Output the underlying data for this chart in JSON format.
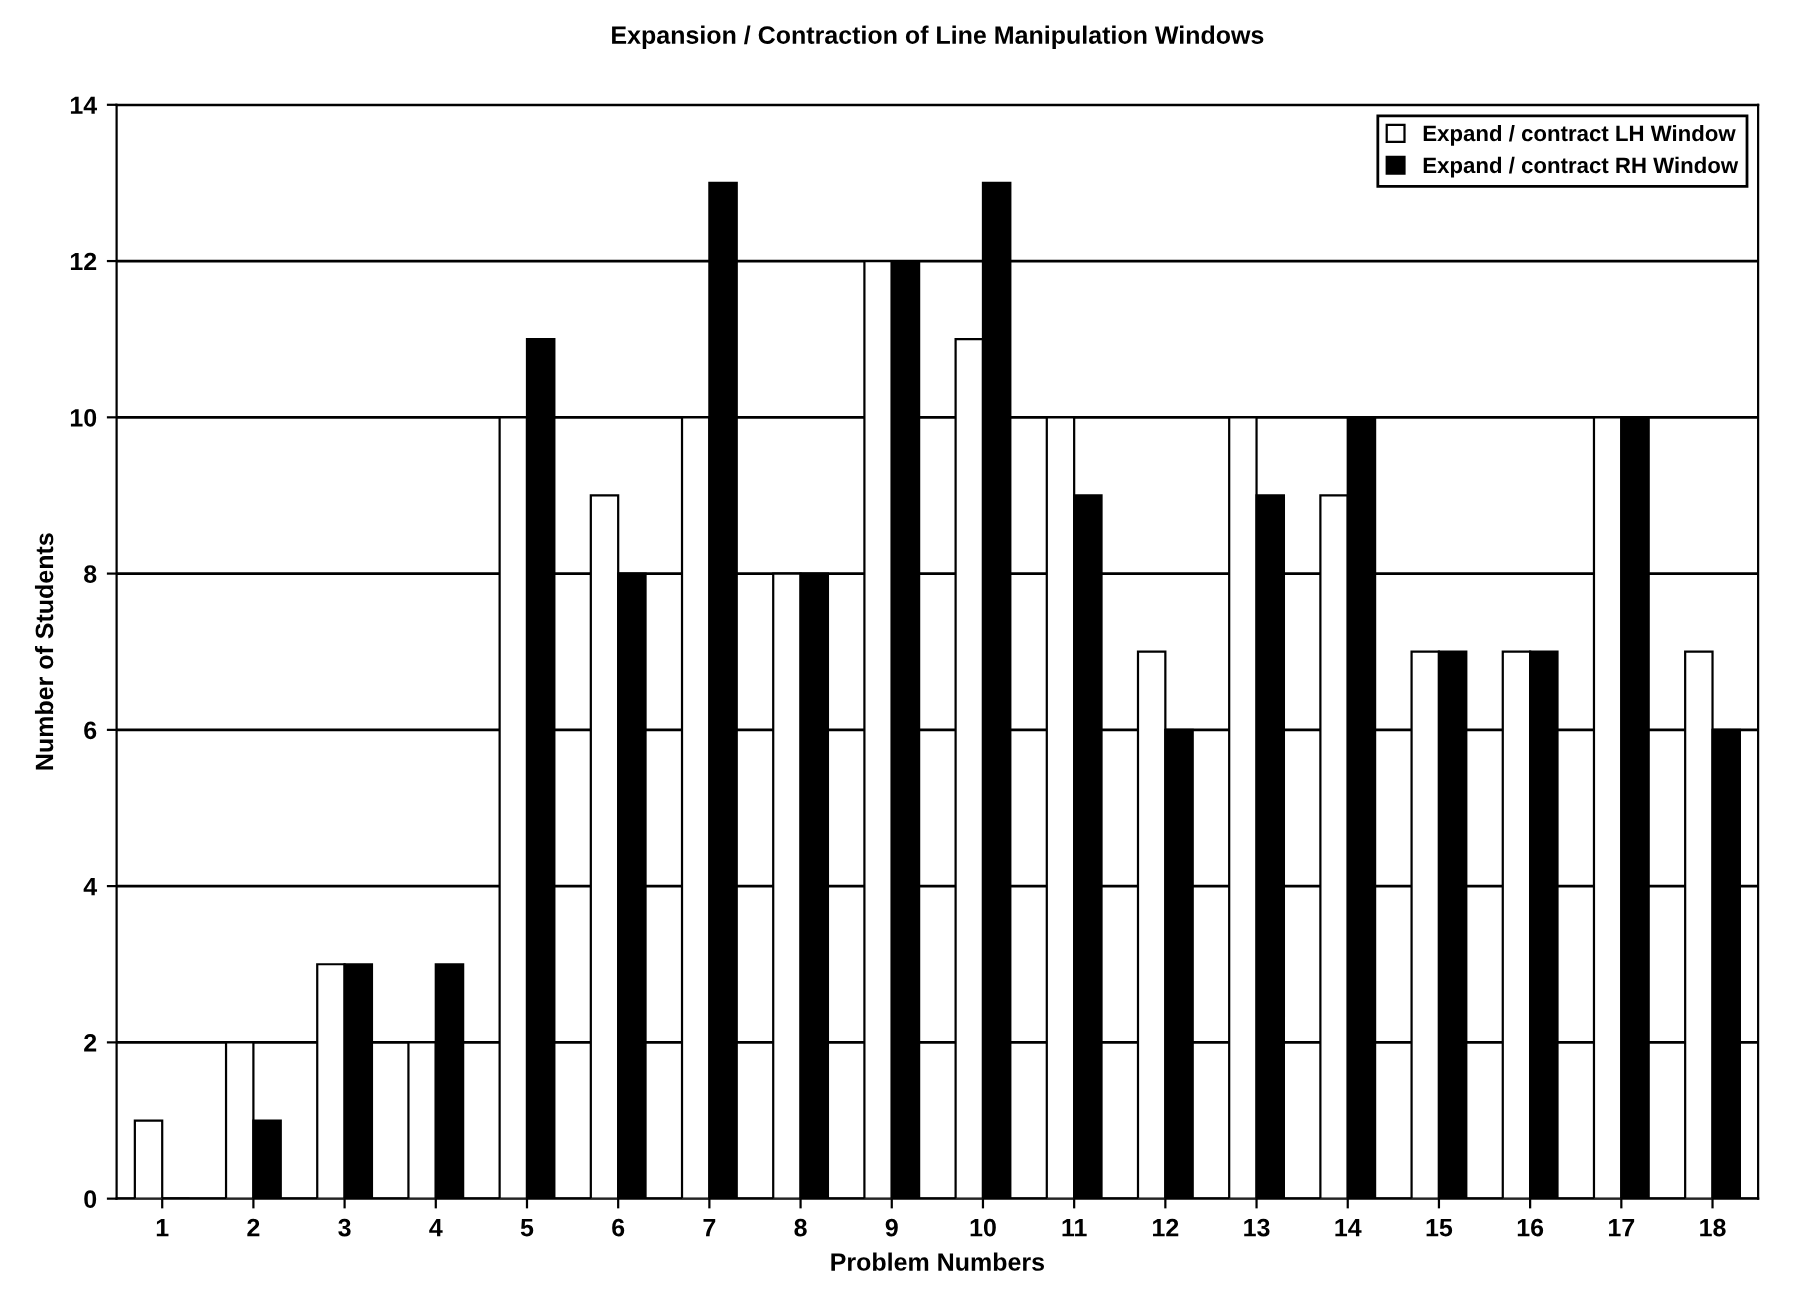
{
  "chart_data": {
    "type": "bar",
    "title": "Expansion / Contraction of Line Manipulation Windows",
    "xlabel": "Problem Numbers",
    "ylabel": "Number of Students",
    "categories": [
      "1",
      "2",
      "3",
      "4",
      "5",
      "6",
      "7",
      "8",
      "9",
      "10",
      "11",
      "12",
      "13",
      "14",
      "15",
      "16",
      "17",
      "18"
    ],
    "series": [
      {
        "name": "Expand / contract LH Window",
        "color": "#ffffff",
        "values": [
          1,
          2,
          3,
          2,
          10,
          9,
          10,
          8,
          12,
          11,
          10,
          7,
          10,
          9,
          7,
          7,
          10,
          7
        ]
      },
      {
        "name": "Expand / contract RH Window",
        "color": "#000000",
        "values": [
          0,
          1,
          3,
          3,
          11,
          8,
          13,
          8,
          12,
          13,
          9,
          6,
          9,
          10,
          7,
          7,
          10,
          6
        ]
      }
    ],
    "ylim": [
      0,
      14
    ],
    "yticks": [
      0,
      2,
      4,
      6,
      8,
      10,
      12,
      14
    ],
    "grid": "y",
    "legend": "top right"
  }
}
